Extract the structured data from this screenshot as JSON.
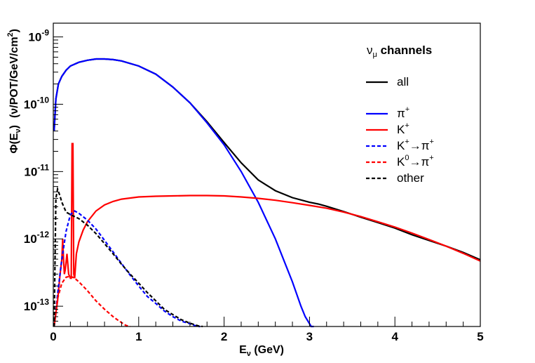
{
  "chart_data": {
    "type": "line",
    "title": "",
    "xlabel": {
      "main": "E",
      "sub": "ν",
      "rest": " (GeV)"
    },
    "ylabel": {
      "phi": "Φ(E",
      "sub": "ν",
      "close": ")",
      "units": "(ν/POT/GeV/cm",
      "sup": "2",
      "end": ")"
    },
    "xlim": [
      0,
      5
    ],
    "ylim": [
      5e-14,
      1.6e-09
    ],
    "yscale": "log",
    "grid": false,
    "x_ticks": [
      "0",
      "1",
      "2",
      "3",
      "4",
      "5"
    ],
    "y_ticks": [
      {
        "base": "10",
        "exp": "-9",
        "value": 1e-09
      },
      {
        "base": "10",
        "exp": "-10",
        "value": 1e-10
      },
      {
        "base": "10",
        "exp": "-11",
        "value": 1e-11
      },
      {
        "base": "10",
        "exp": "-12",
        "value": 1e-12
      },
      {
        "base": "10",
        "exp": "-13",
        "value": 1e-13
      }
    ],
    "legend": {
      "placement": "top-right",
      "title_main": "ν",
      "title_sub": "μ",
      "title_rest": " channels"
    },
    "series": [
      {
        "label": "all",
        "color": "#000000",
        "dash": "solid",
        "x": [
          0.01,
          0.03,
          0.06,
          0.1,
          0.15,
          0.2,
          0.3,
          0.4,
          0.5,
          0.6,
          0.7,
          0.8,
          1.0,
          1.2,
          1.4,
          1.6,
          1.8,
          2.0,
          2.2,
          2.4,
          2.6,
          2.8,
          3.0,
          3.1,
          3.2,
          3.4,
          3.6,
          3.8,
          4.0,
          4.2,
          4.4,
          4.6,
          4.8,
          5.0
        ],
        "y": [
          4e-11,
          1.2e-10,
          2e-10,
          2.6e-10,
          3.2e-10,
          3.7e-10,
          4.2e-10,
          4.5e-10,
          4.7e-10,
          4.7e-10,
          4.6e-10,
          4.4e-10,
          3.7e-10,
          2.8e-10,
          1.8e-10,
          1.05e-10,
          5.5e-11,
          2.7e-11,
          1.35e-11,
          7.5e-12,
          5.2e-12,
          4.1e-12,
          3.5e-12,
          3.3e-12,
          3.05e-12,
          2.55e-12,
          2.1e-12,
          1.75e-12,
          1.45e-12,
          1.15e-12,
          9.5e-13,
          7.8e-13,
          6.3e-13,
          4.9e-13
        ]
      },
      {
        "legend_spacer": true
      },
      {
        "label": "π",
        "label_sup": "+",
        "color": "#0000ff",
        "dash": "solid",
        "x": [
          0.01,
          0.03,
          0.06,
          0.1,
          0.15,
          0.2,
          0.3,
          0.4,
          0.5,
          0.6,
          0.7,
          0.8,
          1.0,
          1.2,
          1.4,
          1.6,
          1.8,
          2.0,
          2.2,
          2.4,
          2.6,
          2.8,
          2.9,
          2.95,
          3.0,
          3.02,
          3.05
        ],
        "y": [
          4e-11,
          1.2e-10,
          2e-10,
          2.6e-10,
          3.2e-10,
          3.7e-10,
          4.2e-10,
          4.5e-10,
          4.7e-10,
          4.7e-10,
          4.6e-10,
          4.4e-10,
          3.7e-10,
          2.8e-10,
          1.8e-10,
          1.05e-10,
          5.3e-11,
          2.5e-11,
          1e-11,
          3.5e-12,
          1e-12,
          2.3e-13,
          1e-13,
          7e-14,
          5.5e-14,
          5e-14,
          5e-14
        ]
      },
      {
        "label": "K",
        "label_sup": "+",
        "color": "#ff0000",
        "dash": "solid",
        "x": [
          0.01,
          0.05,
          0.08,
          0.1,
          0.11,
          0.12,
          0.13,
          0.14,
          0.16,
          0.18,
          0.2,
          0.21,
          0.22,
          0.23,
          0.24,
          0.25,
          0.27,
          0.3,
          0.35,
          0.4,
          0.5,
          0.6,
          0.7,
          0.8,
          1.0,
          1.2,
          1.4,
          1.6,
          1.8,
          2.0,
          2.2,
          2.4,
          2.6,
          2.8,
          3.0,
          3.2,
          3.4,
          3.6,
          3.8,
          4.0,
          4.2,
          4.4,
          4.6,
          4.8,
          5.0
        ],
        "y": [
          5e-14,
          1.2e-13,
          3e-13,
          5e-13,
          1e-12,
          5e-13,
          3e-13,
          3.5e-13,
          6e-13,
          3e-13,
          2.6e-13,
          2.6e-13,
          2.6e-11,
          2.6e-11,
          3e-13,
          2.6e-13,
          6e-13,
          9e-13,
          1.35e-12,
          1.8e-12,
          2.6e-12,
          3.2e-12,
          3.6e-12,
          3.9e-12,
          4.2e-12,
          4.3e-12,
          4.35e-12,
          4.4e-12,
          4.4e-12,
          4.35e-12,
          4.2e-12,
          4e-12,
          3.75e-12,
          3.45e-12,
          3.15e-12,
          2.85e-12,
          2.5e-12,
          2.15e-12,
          1.8e-12,
          1.5e-12,
          1.22e-12,
          9.8e-13,
          7.8e-13,
          6.1e-13,
          4.7e-13
        ]
      },
      {
        "label": "K",
        "label_sup": "+",
        "label_rest": "→π",
        "label_rest_sup": "+",
        "color": "#0000ff",
        "dash": "dashed",
        "x": [
          0.01,
          0.05,
          0.1,
          0.15,
          0.2,
          0.25,
          0.3,
          0.4,
          0.5,
          0.6,
          0.7,
          0.8,
          0.9,
          1.0,
          1.1,
          1.2,
          1.3,
          1.4,
          1.5,
          1.6,
          1.65,
          1.7,
          1.72
        ],
        "y": [
          5e-14,
          1.5e-13,
          5e-13,
          1.3e-12,
          2.3e-12,
          2.6e-12,
          2.4e-12,
          1.9e-12,
          1.4e-12,
          9.5e-13,
          6.4e-13,
          4.3e-13,
          2.9e-13,
          2e-13,
          1.4e-13,
          1.1e-13,
          8.5e-14,
          7e-14,
          6e-14,
          5.5e-14,
          5.2e-14,
          5e-14,
          5e-14
        ]
      },
      {
        "label": "K",
        "label_sup": "0",
        "label_rest": "→π",
        "label_rest_sup": "+",
        "color": "#ff0000",
        "dash": "dashed",
        "x": [
          0.01,
          0.05,
          0.1,
          0.15,
          0.2,
          0.25,
          0.3,
          0.4,
          0.5,
          0.6,
          0.7,
          0.75,
          0.8,
          0.85,
          0.9
        ],
        "y": [
          5e-14,
          1.3e-13,
          2.2e-13,
          2.7e-13,
          2.8e-13,
          2.6e-13,
          2.3e-13,
          1.7e-13,
          1.2e-13,
          9e-14,
          7e-14,
          6.3e-14,
          5.7e-14,
          5.2e-14,
          5e-14
        ]
      },
      {
        "label": "other",
        "color": "#000000",
        "dash": "dashed",
        "x": [
          0.01,
          0.03,
          0.05,
          0.08,
          0.1,
          0.15,
          0.2,
          0.3,
          0.4,
          0.5,
          0.6,
          0.7,
          0.8,
          0.9,
          1.0,
          1.1,
          1.2,
          1.3,
          1.4,
          1.5,
          1.6,
          1.7,
          1.75
        ],
        "y": [
          5e-14,
          4e-12,
          5.5e-12,
          4.3e-12,
          3.5e-12,
          2.5e-12,
          2.3e-12,
          2e-12,
          1.6e-12,
          1.2e-12,
          8.5e-13,
          6e-13,
          4.2e-13,
          3e-13,
          2.2e-13,
          1.6e-13,
          1.2e-13,
          9e-14,
          7.5e-14,
          6.3e-14,
          5.6e-14,
          5.1e-14,
          5e-14
        ]
      }
    ]
  }
}
